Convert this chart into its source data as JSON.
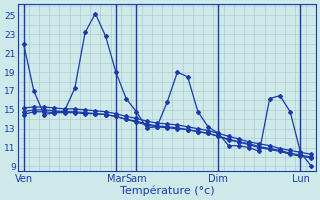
{
  "background_color": "#cde9e9",
  "grid_color": "#b0cccc",
  "line_color": "#1a3aaa",
  "xlabel": "Température (°c)",
  "ylabel_ticks": [
    9,
    11,
    13,
    15,
    17,
    19,
    21,
    23,
    25
  ],
  "ylim": [
    8.5,
    26.2
  ],
  "figsize": [
    3.2,
    2.0
  ],
  "dpi": 100,
  "xtick_labels": [
    "Ven",
    "Mar",
    "Sam",
    "Dim",
    "Lun"
  ],
  "vline_positions": [
    0,
    9,
    11,
    19,
    27
  ],
  "xtick_positions": [
    0,
    9,
    11,
    19,
    27
  ],
  "xlim": [
    -0.5,
    28.5
  ],
  "series1_x": [
    0,
    1,
    2,
    3,
    4,
    5,
    6,
    7,
    8,
    9,
    10,
    11,
    12,
    13,
    14,
    15,
    16,
    17,
    18,
    19,
    20,
    21,
    22,
    23,
    24,
    25,
    26,
    27,
    28
  ],
  "series1_y": [
    22.0,
    17.0,
    14.5,
    14.7,
    14.9,
    17.3,
    23.2,
    25.2,
    22.8,
    19.0,
    16.2,
    14.8,
    13.1,
    13.2,
    15.8,
    19.0,
    18.5,
    14.8,
    13.2,
    12.5,
    11.2,
    11.2,
    11.0,
    10.6,
    16.2,
    16.5,
    14.8,
    10.5,
    9.1
  ],
  "series2_x": [
    0,
    1,
    2,
    3,
    4,
    5,
    6,
    7,
    8,
    9,
    10,
    11,
    12,
    13,
    14,
    15,
    16,
    17,
    18,
    19,
    20,
    21,
    22,
    23,
    24,
    25,
    26,
    27,
    28
  ],
  "series2_y": [
    14.5,
    14.8,
    14.8,
    14.7,
    14.7,
    14.7,
    14.6,
    14.6,
    14.5,
    14.3,
    14.0,
    13.7,
    13.4,
    13.2,
    13.1,
    13.0,
    12.9,
    12.7,
    12.5,
    12.2,
    11.8,
    11.6,
    11.3,
    11.0,
    10.8,
    10.6,
    10.3,
    10.1,
    9.9
  ],
  "series3_x": [
    0,
    1,
    2,
    3,
    4,
    5,
    6,
    7,
    8,
    9,
    10,
    11,
    12,
    13,
    14,
    15,
    16,
    17,
    18,
    19,
    20,
    21,
    22,
    23,
    24,
    25,
    26,
    27,
    28
  ],
  "series3_y": [
    14.8,
    15.0,
    15.0,
    14.9,
    14.8,
    14.8,
    14.7,
    14.6,
    14.5,
    14.3,
    14.0,
    13.8,
    13.5,
    13.3,
    13.2,
    13.1,
    12.9,
    12.7,
    12.5,
    12.2,
    11.9,
    11.6,
    11.4,
    11.1,
    10.9,
    10.7,
    10.4,
    10.2,
    10.0
  ],
  "series4_x": [
    0,
    1,
    2,
    3,
    4,
    5,
    6,
    7,
    8,
    9,
    10,
    11,
    12,
    13,
    14,
    15,
    16,
    17,
    18,
    19,
    20,
    21,
    22,
    23,
    24,
    25,
    26,
    27,
    28
  ],
  "series4_y": [
    15.2,
    15.3,
    15.3,
    15.2,
    15.1,
    15.1,
    15.0,
    14.9,
    14.8,
    14.6,
    14.3,
    14.1,
    13.8,
    13.6,
    13.5,
    13.4,
    13.2,
    13.0,
    12.8,
    12.5,
    12.2,
    11.9,
    11.6,
    11.4,
    11.2,
    10.9,
    10.7,
    10.5,
    10.3
  ]
}
